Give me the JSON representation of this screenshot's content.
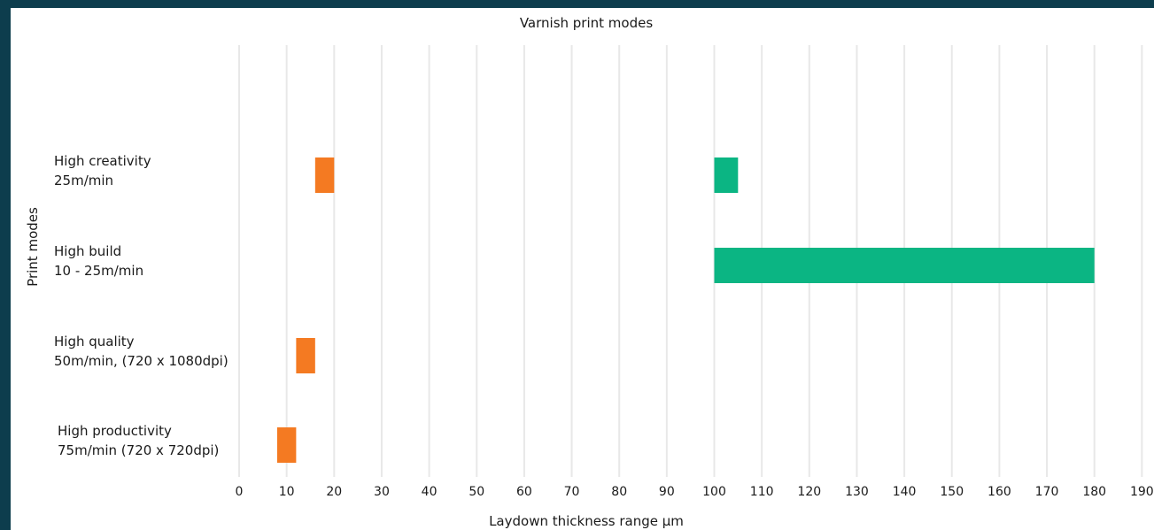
{
  "chart_data": {
    "type": "bar",
    "orientation": "horizontal-range",
    "title": "Varnish print modes",
    "xlabel": "Laydown thickness range µm",
    "ylabel": "Print modes",
    "xlim": [
      0,
      190
    ],
    "xticks": [
      "0",
      "10",
      "20",
      "30",
      "40",
      "50",
      "60",
      "70",
      "80",
      "90",
      "100",
      "110",
      "120",
      "130",
      "140",
      "150",
      "160",
      "170",
      "180",
      "190"
    ],
    "grid": true,
    "categories": [
      {
        "line1": "High creativity",
        "line2": "25m/min"
      },
      {
        "line1": "High build",
        "line2": "10 - 25m/min"
      },
      {
        "line1": "High quality",
        "line2": "50m/min, (720 x 1080dpi)"
      },
      {
        "line1": "High productivity",
        "line2": "75m/min (720 x 720dpi)"
      }
    ],
    "series": [
      {
        "color": "#f47a22",
        "ranges": [
          [
            16,
            20
          ],
          null,
          [
            12,
            16
          ],
          [
            8,
            12
          ]
        ]
      },
      {
        "color": "#0bb583",
        "ranges": [
          [
            100,
            105
          ],
          [
            100,
            180
          ],
          null,
          null
        ]
      }
    ]
  },
  "colors": {
    "frame": "#0d3d4d",
    "background": "#ffffff",
    "grid": "#e8e8e8"
  }
}
